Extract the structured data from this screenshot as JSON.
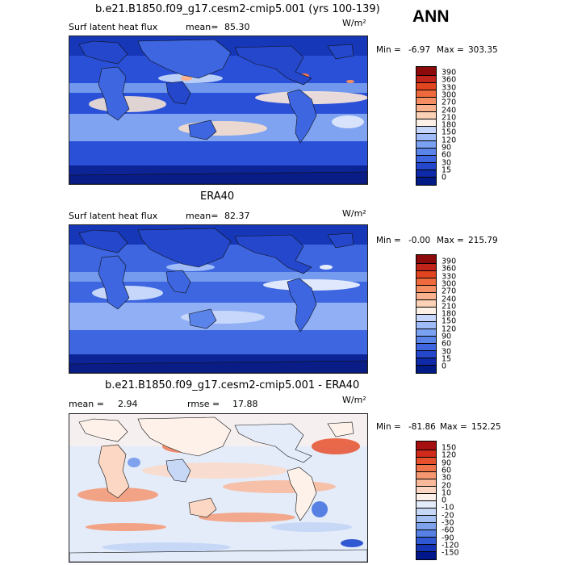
{
  "season": "ANN",
  "panels": [
    {
      "title": "b.e21.B1850.f09_g17.cesm2-cmip5.001 (yrs 100-139)",
      "var_label": "Surf latent heat flux",
      "stat_label": "mean=",
      "stat_value": "85.30",
      "stat2_label": "",
      "stat2_value": "",
      "units": "W/m²",
      "min_label": "Min =",
      "min_value": "-6.97",
      "max_label": "Max =",
      "max_value": "303.35",
      "levels": [
        "390",
        "360",
        "330",
        "300",
        "270",
        "240",
        "210",
        "180",
        "150",
        "120",
        "90",
        "60",
        "30",
        "15",
        "0"
      ],
      "colors": [
        "#8c0a0a",
        "#c0241a",
        "#e0451f",
        "#ee6a3c",
        "#f58e62",
        "#f9b18e",
        "#fbd2b6",
        "#fdf0e6",
        "#c6d7fb",
        "#9fbcf8",
        "#7ba1f2",
        "#5a84ea",
        "#3d66e0",
        "#2447cc",
        "#0f2aa8",
        "#001a86"
      ]
    },
    {
      "title": "ERA40",
      "var_label": "Surf latent heat flux",
      "stat_label": "mean=",
      "stat_value": "82.37",
      "stat2_label": "",
      "stat2_value": "",
      "units": "W/m²",
      "min_label": "Min =",
      "min_value": "-0.00",
      "max_label": "Max =",
      "max_value": "215.79",
      "levels": [
        "390",
        "360",
        "330",
        "300",
        "270",
        "240",
        "210",
        "180",
        "150",
        "120",
        "90",
        "60",
        "30",
        "15",
        "0"
      ],
      "colors": [
        "#8c0a0a",
        "#c0241a",
        "#e0451f",
        "#ee6a3c",
        "#f58e62",
        "#f9b18e",
        "#fbd2b6",
        "#fdf0e6",
        "#c6d7fb",
        "#9fbcf8",
        "#7ba1f2",
        "#5a84ea",
        "#3d66e0",
        "#2447cc",
        "#0f2aa8",
        "#001a86"
      ]
    },
    {
      "title": "b.e21.B1850.f09_g17.cesm2-cmip5.001 - ERA40",
      "var_label": "",
      "stat_label": "mean =",
      "stat_value": "2.94",
      "stat2_label": "rmse =",
      "stat2_value": "17.88",
      "units": "W/m²",
      "min_label": "Min =",
      "min_value": "-81.86",
      "max_label": "Max =",
      "max_value": "152.25",
      "levels": [
        "150",
        "120",
        "90",
        "60",
        "30",
        "20",
        "10",
        "0",
        "-10",
        "-20",
        "-30",
        "-60",
        "-90",
        "-120",
        "-150"
      ],
      "colors": [
        "#a50f0f",
        "#cf2a1c",
        "#e6502d",
        "#f0744a",
        "#f59770",
        "#f9b99a",
        "#fcd8c4",
        "#fdf1ea",
        "#e4ecfa",
        "#c7d8f7",
        "#a5c0f2",
        "#7fa2ec",
        "#5680e3",
        "#2f58d2",
        "#1535b4",
        "#00178c"
      ]
    }
  ]
}
